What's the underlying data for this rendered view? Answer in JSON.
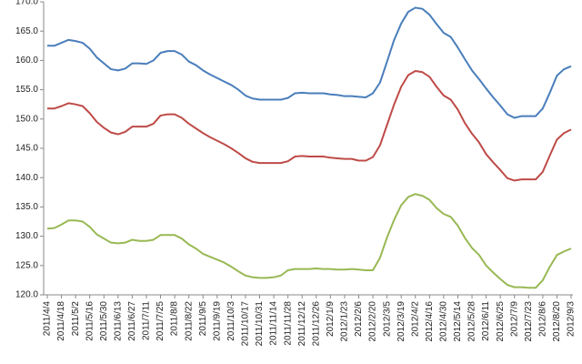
{
  "chart_data": {
    "type": "line",
    "categories": [
      "2011/4/4",
      null,
      "2011/4/18",
      null,
      "2011/5/2",
      null,
      "2011/5/16",
      null,
      "2011/5/30",
      null,
      "2011/6/13",
      null,
      "2011/6/27",
      null,
      "2011/7/11",
      null,
      "2011/7/25",
      null,
      "2011/8/8",
      null,
      "2011/8/22",
      null,
      "2011/9/5",
      null,
      "2011/9/19",
      null,
      "2011/10/3",
      null,
      "2011/10/17",
      null,
      "2011/10/31",
      null,
      "2011/11/14",
      null,
      "2011/11/28",
      null,
      "2011/12/12",
      null,
      "2011/12/26",
      null,
      "2012/1/9",
      null,
      "2012/1/23",
      null,
      "2012/2/6",
      null,
      "2012/2/20",
      null,
      "2012/3/5",
      null,
      "2012/3/19",
      null,
      "2012/4/2",
      null,
      "2012/4/16",
      null,
      "2012/4/30",
      null,
      "2012/5/14",
      null,
      "2012/5/28",
      null,
      "2012/6/11",
      null,
      "2012/6/25",
      null,
      "2012/7/9",
      null,
      "2012/7/23",
      null,
      "2012/8/6",
      null,
      "2012/8/20",
      null,
      "2012/9/3"
    ],
    "series": [
      {
        "color": "#4a7ebb",
        "values": [
          162.5,
          162.5,
          163,
          163.5,
          163.3,
          163,
          162,
          160.5,
          159.5,
          158.5,
          158.3,
          158.6,
          159.5,
          159.5,
          159.4,
          160,
          161.3,
          161.6,
          161.6,
          161,
          159.8,
          159.2,
          158.3,
          157.6,
          157,
          156.4,
          155.8,
          155,
          154,
          153.5,
          153.3,
          153.3,
          153.3,
          153.3,
          153.6,
          154.4,
          154.5,
          154.4,
          154.4,
          154.4,
          154.2,
          154.1,
          153.9,
          153.9,
          153.8,
          153.7,
          154.4,
          156.2,
          159.8,
          163.5,
          166.3,
          168.3,
          169,
          168.8,
          167.8,
          166.2,
          164.7,
          164,
          162.2,
          160.2,
          158.3,
          156.8,
          155.2,
          153.7,
          152.3,
          150.8,
          150.2,
          150.5,
          150.5,
          150.5,
          151.8,
          154.5,
          157.4,
          158.5,
          159
        ]
      },
      {
        "color": "#be4b48",
        "values": [
          151.8,
          151.8,
          152.2,
          152.7,
          152.5,
          152.2,
          151,
          149.5,
          148.5,
          147.7,
          147.4,
          147.8,
          148.7,
          148.7,
          148.7,
          149.2,
          150.6,
          150.8,
          150.8,
          150.2,
          149.2,
          148.4,
          147.6,
          146.9,
          146.3,
          145.7,
          145,
          144.2,
          143.3,
          142.7,
          142.5,
          142.5,
          142.5,
          142.5,
          142.8,
          143.6,
          143.7,
          143.6,
          143.6,
          143.6,
          143.4,
          143.3,
          143.2,
          143.2,
          142.9,
          142.9,
          143.5,
          145.5,
          149,
          152.5,
          155.5,
          157.5,
          158.2,
          158,
          157.2,
          155.5,
          154,
          153.3,
          151.6,
          149.3,
          147.5,
          146,
          144,
          142.6,
          141.3,
          139.9,
          139.5,
          139.7,
          139.7,
          139.7,
          141,
          143.8,
          146.5,
          147.6,
          148.2
        ]
      },
      {
        "color": "#98b954",
        "values": [
          131.3,
          131.4,
          132,
          132.7,
          132.7,
          132.5,
          131.6,
          130.3,
          129.6,
          128.9,
          128.8,
          128.9,
          129.4,
          129.2,
          129.2,
          129.4,
          130.2,
          130.2,
          130.2,
          129.6,
          128.6,
          127.9,
          127,
          126.5,
          126,
          125.5,
          124.8,
          124,
          123.3,
          123,
          122.9,
          122.9,
          123,
          123.3,
          124.2,
          124.4,
          124.4,
          124.4,
          124.5,
          124.4,
          124.4,
          124.3,
          124.3,
          124.4,
          124.3,
          124.2,
          124.2,
          126.3,
          129.8,
          132.8,
          135.3,
          136.7,
          137.2,
          136.9,
          136.2,
          134.8,
          133.8,
          133.3,
          131.8,
          129.7,
          128,
          126.8,
          125,
          123.8,
          122.7,
          121.7,
          121.3,
          121.3,
          121.2,
          121.2,
          122.5,
          124.8,
          126.8,
          127.4,
          127.9
        ]
      }
    ],
    "ylim": [
      120,
      170
    ],
    "yticks": [
      {
        "value": 120,
        "label": "120.0"
      },
      {
        "value": 125,
        "label": "125.0"
      },
      {
        "value": 130,
        "label": "130.0"
      },
      {
        "value": 135,
        "label": "135.0"
      },
      {
        "value": 140,
        "label": "140.0"
      },
      {
        "value": 145,
        "label": "145.0"
      },
      {
        "value": 150,
        "label": "150.0"
      },
      {
        "value": 155,
        "label": "155.0"
      },
      {
        "value": 160,
        "label": "160.0"
      },
      {
        "value": 165,
        "label": "165.0"
      },
      {
        "value": 170,
        "label": "170.0"
      }
    ],
    "grid": false
  }
}
